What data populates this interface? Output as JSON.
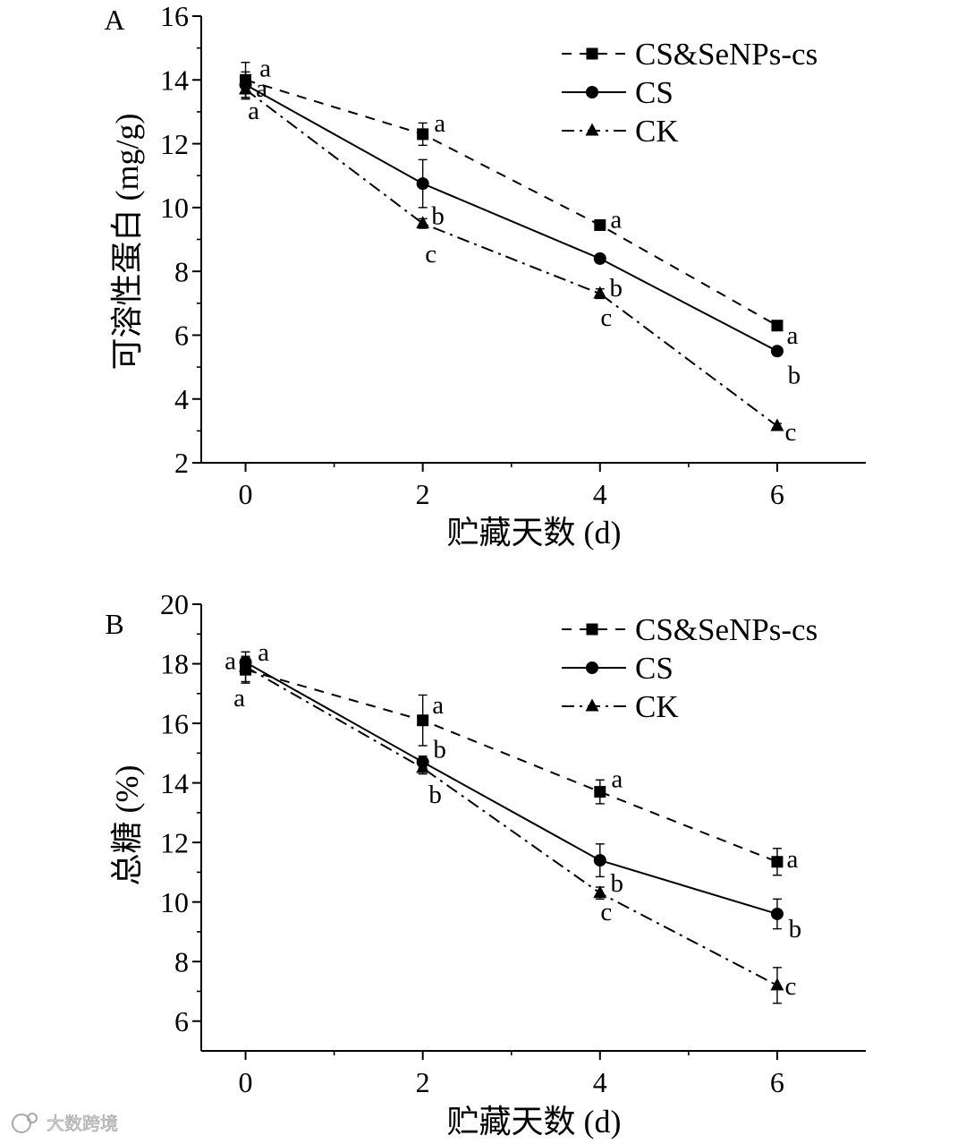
{
  "watermark": {
    "text": "大数跨境"
  },
  "chart_data": [
    {
      "panel": "A",
      "type": "line",
      "xlabel": "贮藏天数 (d)",
      "ylabel": "可溶性蛋白 (mg/g)",
      "x": [
        0,
        2,
        4,
        6
      ],
      "xticks": [
        0,
        2,
        4,
        6
      ],
      "yticks": [
        2,
        4,
        6,
        8,
        10,
        12,
        14,
        16
      ],
      "xlim": [
        -0.5,
        7
      ],
      "ylim": [
        2,
        16
      ],
      "grid": false,
      "legend_position": "top-right",
      "series": [
        {
          "name": "CS&SeNPs-cs",
          "values": [
            14.0,
            12.3,
            9.45,
            6.3
          ],
          "errors": [
            0.55,
            0.35,
            0.1,
            0.1
          ],
          "letters": [
            "a",
            "a",
            "a",
            "a"
          ]
        },
        {
          "name": "CS",
          "values": [
            13.85,
            10.75,
            8.4,
            5.5
          ],
          "errors": [
            0.4,
            0.75,
            0.12,
            0.08
          ],
          "letters": [
            "a",
            "b",
            "b",
            "b"
          ]
        },
        {
          "name": "CK",
          "values": [
            13.7,
            9.5,
            7.3,
            3.15
          ],
          "errors": [
            0.3,
            0.15,
            0.15,
            0.08
          ],
          "letters": [
            "a",
            "c",
            "c",
            "c"
          ]
        }
      ]
    },
    {
      "panel": "B",
      "type": "line",
      "xlabel": "贮藏天数 (d)",
      "ylabel": "总糖 (%)",
      "x": [
        0,
        2,
        4,
        6
      ],
      "xticks": [
        0,
        2,
        4,
        6
      ],
      "yticks": [
        6,
        8,
        10,
        12,
        14,
        16,
        18,
        20
      ],
      "xlim": [
        -0.5,
        7
      ],
      "ylim": [
        5,
        20
      ],
      "grid": false,
      "legend_position": "top-right",
      "series": [
        {
          "name": "CS&SeNPs-cs",
          "values": [
            17.8,
            16.1,
            13.7,
            11.35
          ],
          "errors": [
            0.45,
            0.85,
            0.4,
            0.45
          ],
          "letters": [
            "a",
            "a",
            "a",
            "a"
          ]
        },
        {
          "name": "CS",
          "values": [
            18.05,
            14.7,
            11.4,
            9.6
          ],
          "errors": [
            0.15,
            0.2,
            0.55,
            0.5
          ],
          "letters": [
            "a",
            "b",
            "b",
            "b"
          ]
        },
        {
          "name": "CK",
          "values": [
            17.9,
            14.5,
            10.3,
            7.2
          ],
          "errors": [
            0.5,
            0.2,
            0.2,
            0.6
          ],
          "letters": [
            "a",
            "b",
            "c",
            "c"
          ]
        }
      ]
    }
  ]
}
